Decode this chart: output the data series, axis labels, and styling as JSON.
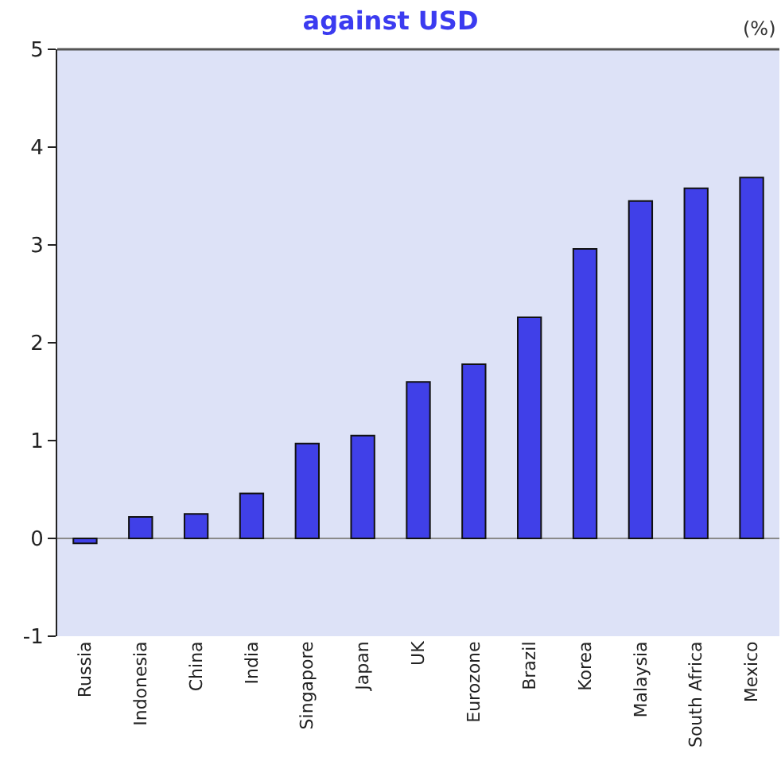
{
  "chart_data": {
    "type": "bar",
    "title": "against USD",
    "annotations": [
      "(%)"
    ],
    "categories": [
      "Russia",
      "Indonesia",
      "China",
      "India",
      "Singapore",
      "Japan",
      "UK",
      "Eurozone",
      "Brazil",
      "Korea",
      "Malaysia",
      "South Africa",
      "Mexico"
    ],
    "values": [
      -0.05,
      0.22,
      0.25,
      0.46,
      0.97,
      1.05,
      1.6,
      1.78,
      2.26,
      2.96,
      3.45,
      3.58,
      3.69
    ],
    "color": "#4040e8",
    "ylim": [
      -1,
      5
    ],
    "yticks": [
      -1,
      0,
      1,
      2,
      3,
      4,
      5
    ],
    "ref_lines": [
      {
        "axis": "y",
        "value": 0,
        "color": "#8a8a8a"
      }
    ]
  }
}
